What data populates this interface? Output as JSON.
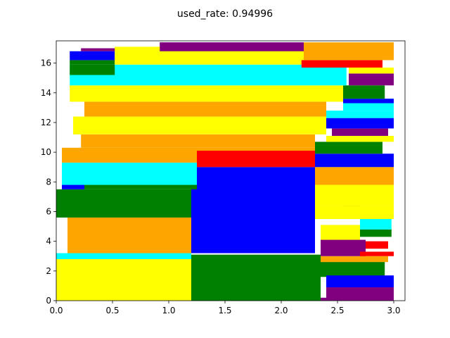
{
  "chart_data": {
    "type": "rectangle-packing",
    "title": "used_rate: 0.94996",
    "xlabel": "",
    "ylabel": "",
    "xlim": [
      0,
      3.1
    ],
    "ylim": [
      0,
      17.5
    ],
    "xticks": [
      "0.0",
      "0.5",
      "1.0",
      "1.5",
      "2.0",
      "2.5",
      "3.0"
    ],
    "xtick_values": [
      0,
      0.5,
      1.0,
      1.5,
      2.0,
      2.5,
      3.0
    ],
    "yticks": [
      "0",
      "2",
      "4",
      "6",
      "8",
      "10",
      "12",
      "14",
      "16"
    ],
    "ytick_values": [
      0,
      2,
      4,
      6,
      8,
      10,
      12,
      14,
      16
    ],
    "grid": false,
    "colors": {
      "yellow": "#ffff00",
      "green": "#008000",
      "orange": "#ffa500",
      "cyan": "#00ffff",
      "blue": "#0000ff",
      "red": "#ff0000",
      "purple": "#800080"
    },
    "rectangles": [
      {
        "x0": 0.0,
        "x1": 1.2,
        "y0": 0.0,
        "y1": 2.8,
        "color": "yellow"
      },
      {
        "x0": 0.0,
        "x1": 1.2,
        "y0": 2.8,
        "y1": 3.2,
        "color": "cyan"
      },
      {
        "x0": 1.2,
        "x1": 2.35,
        "y0": 0.0,
        "y1": 3.1,
        "color": "green"
      },
      {
        "x0": 2.35,
        "x1": 2.92,
        "y0": 1.6,
        "y1": 2.9,
        "color": "green"
      },
      {
        "x0": 2.35,
        "x1": 2.4,
        "y0": 0.0,
        "y1": 0.2,
        "color": "purple"
      },
      {
        "x0": 2.4,
        "x1": 3.0,
        "y0": 0.0,
        "y1": 0.9,
        "color": "purple"
      },
      {
        "x0": 2.4,
        "x1": 3.0,
        "y0": 0.9,
        "y1": 1.7,
        "color": "blue"
      },
      {
        "x0": 2.35,
        "x1": 2.95,
        "y0": 2.6,
        "y1": 3.0,
        "color": "orange"
      },
      {
        "x0": 2.35,
        "x1": 2.75,
        "y0": 3.0,
        "y1": 4.1,
        "color": "purple"
      },
      {
        "x0": 2.35,
        "x1": 2.7,
        "y0": 4.1,
        "y1": 5.1,
        "color": "yellow"
      },
      {
        "x0": 2.7,
        "x1": 3.0,
        "y0": 3.0,
        "y1": 3.3,
        "color": "red"
      },
      {
        "x0": 2.75,
        "x1": 2.95,
        "y0": 3.5,
        "y1": 4.0,
        "color": "red"
      },
      {
        "x0": 2.7,
        "x1": 2.98,
        "y0": 4.3,
        "y1": 4.8,
        "color": "green"
      },
      {
        "x0": 2.7,
        "x1": 2.98,
        "y0": 4.8,
        "y1": 5.6,
        "color": "cyan"
      },
      {
        "x0": 2.7,
        "x1": 2.95,
        "y0": 5.6,
        "y1": 6.0,
        "color": "red"
      },
      {
        "x0": 2.45,
        "x1": 2.7,
        "y0": 5.6,
        "y1": 6.1,
        "color": "orange"
      },
      {
        "x0": 2.55,
        "x1": 2.7,
        "y0": 6.0,
        "y1": 6.4,
        "color": "blue"
      },
      {
        "x0": 0.1,
        "x1": 1.2,
        "y0": 3.2,
        "y1": 5.6,
        "color": "orange"
      },
      {
        "x0": 1.2,
        "x1": 2.3,
        "y0": 3.2,
        "y1": 9.0,
        "color": "blue"
      },
      {
        "x0": 2.3,
        "x1": 3.0,
        "y0": 5.5,
        "y1": 6.4,
        "color": "yellow"
      },
      {
        "x0": 0.0,
        "x1": 1.2,
        "y0": 5.6,
        "y1": 7.5,
        "color": "green"
      },
      {
        "x0": 0.05,
        "x1": 0.25,
        "y0": 7.5,
        "y1": 7.8,
        "color": "blue"
      },
      {
        "x0": 0.25,
        "x1": 1.25,
        "y0": 7.5,
        "y1": 7.8,
        "color": "green"
      },
      {
        "x0": 2.3,
        "x1": 3.0,
        "y0": 6.4,
        "y1": 7.8,
        "color": "yellow"
      },
      {
        "x0": 2.3,
        "x1": 3.0,
        "y0": 7.8,
        "y1": 9.0,
        "color": "orange"
      },
      {
        "x0": 0.05,
        "x1": 1.25,
        "y0": 7.8,
        "y1": 9.3,
        "color": "cyan"
      },
      {
        "x0": 1.25,
        "x1": 2.3,
        "y0": 9.0,
        "y1": 10.1,
        "color": "red"
      },
      {
        "x0": 2.3,
        "x1": 3.0,
        "y0": 9.0,
        "y1": 9.9,
        "color": "blue"
      },
      {
        "x0": 2.3,
        "x1": 2.9,
        "y0": 9.9,
        "y1": 10.7,
        "color": "green"
      },
      {
        "x0": 0.05,
        "x1": 1.25,
        "y0": 9.3,
        "y1": 10.3,
        "color": "orange"
      },
      {
        "x0": 1.25,
        "x1": 2.3,
        "y0": 10.1,
        "y1": 10.3,
        "color": "orange"
      },
      {
        "x0": 0.22,
        "x1": 2.3,
        "y0": 10.3,
        "y1": 11.2,
        "color": "orange"
      },
      {
        "x0": 0.15,
        "x1": 2.4,
        "y0": 11.2,
        "y1": 12.4,
        "color": "yellow"
      },
      {
        "x0": 2.4,
        "x1": 3.0,
        "y0": 10.7,
        "y1": 11.1,
        "color": "yellow"
      },
      {
        "x0": 2.45,
        "x1": 2.95,
        "y0": 11.1,
        "y1": 11.6,
        "color": "purple"
      },
      {
        "x0": 2.4,
        "x1": 3.0,
        "y0": 11.6,
        "y1": 12.3,
        "color": "blue"
      },
      {
        "x0": 2.4,
        "x1": 3.0,
        "y0": 12.3,
        "y1": 12.8,
        "color": "cyan"
      },
      {
        "x0": 2.55,
        "x1": 3.0,
        "y0": 12.8,
        "y1": 13.6,
        "color": "cyan"
      },
      {
        "x0": 2.55,
        "x1": 3.0,
        "y0": 13.3,
        "y1": 13.6,
        "color": "blue"
      },
      {
        "x0": 0.25,
        "x1": 2.4,
        "y0": 12.4,
        "y1": 13.4,
        "color": "orange"
      },
      {
        "x0": 0.12,
        "x1": 2.55,
        "y0": 13.4,
        "y1": 14.5,
        "color": "yellow"
      },
      {
        "x0": 2.55,
        "x1": 2.92,
        "y0": 13.6,
        "y1": 14.5,
        "color": "green"
      },
      {
        "x0": 2.6,
        "x1": 3.0,
        "y0": 14.5,
        "y1": 15.3,
        "color": "purple"
      },
      {
        "x0": 2.6,
        "x1": 3.0,
        "y0": 15.3,
        "y1": 15.7,
        "color": "yellow"
      },
      {
        "x0": 0.12,
        "x1": 2.58,
        "y0": 14.5,
        "y1": 15.9,
        "color": "cyan"
      },
      {
        "x0": 0.12,
        "x1": 0.52,
        "y0": 15.2,
        "y1": 15.9,
        "color": "green"
      },
      {
        "x0": 0.12,
        "x1": 0.52,
        "y0": 15.9,
        "y1": 16.2,
        "color": "green"
      },
      {
        "x0": 0.12,
        "x1": 0.52,
        "y0": 16.2,
        "y1": 16.8,
        "color": "blue"
      },
      {
        "x0": 0.22,
        "x1": 0.55,
        "y0": 16.8,
        "y1": 17.0,
        "color": "purple"
      },
      {
        "x0": 0.52,
        "x1": 2.2,
        "y0": 15.9,
        "y1": 17.1,
        "color": "yellow"
      },
      {
        "x0": 0.92,
        "x1": 2.2,
        "y0": 16.8,
        "y1": 17.4,
        "color": "purple"
      },
      {
        "x0": 2.18,
        "x1": 2.9,
        "y0": 15.7,
        "y1": 16.2,
        "color": "red"
      },
      {
        "x0": 2.2,
        "x1": 3.0,
        "y0": 16.2,
        "y1": 17.4,
        "color": "orange"
      }
    ]
  }
}
